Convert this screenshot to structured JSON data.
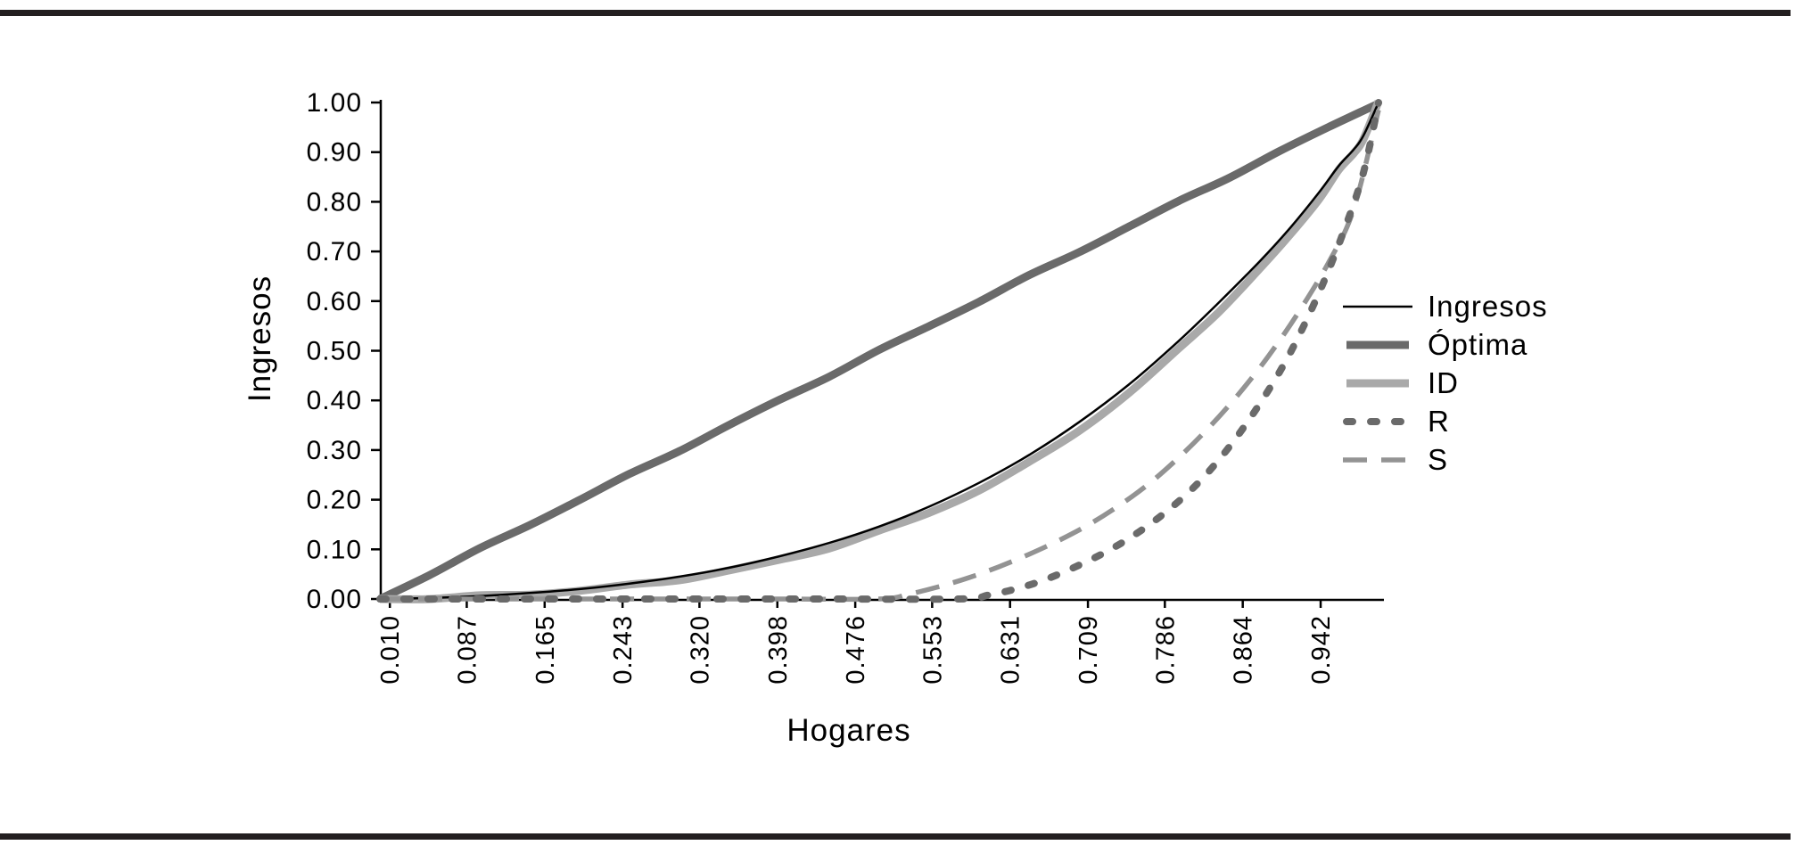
{
  "chart_data": {
    "type": "line",
    "title": "",
    "xlabel": "Hogares",
    "ylabel": "Ingresos",
    "xlim": [
      0,
      1
    ],
    "ylim": [
      0,
      1
    ],
    "grid": false,
    "legend_position": "right",
    "x_tick_labels": [
      "0.010",
      "0.087",
      "0.165",
      "0.243",
      "0.320",
      "0.398",
      "0.476",
      "0.553",
      "0.631",
      "0.709",
      "0.786",
      "0.864",
      "0.942"
    ],
    "x_tick_values": [
      0.01,
      0.087,
      0.165,
      0.243,
      0.32,
      0.398,
      0.476,
      0.553,
      0.631,
      0.709,
      0.786,
      0.864,
      0.942
    ],
    "y_tick_labels": [
      "0.00",
      "0.10",
      "0.20",
      "0.30",
      "0.40",
      "0.50",
      "0.60",
      "0.70",
      "0.80",
      "0.90",
      "1.00"
    ],
    "y_tick_values": [
      0,
      0.1,
      0.2,
      0.3,
      0.4,
      0.5,
      0.6,
      0.7,
      0.8,
      0.9,
      1.0
    ],
    "series": [
      {
        "name": "Ingresos",
        "color": "#000000",
        "width": 2.5,
        "dash": "solid",
        "points": [
          [
            0,
            0
          ],
          [
            0.05,
            0.002
          ],
          [
            0.1,
            0.006
          ],
          [
            0.15,
            0.012
          ],
          [
            0.2,
            0.02
          ],
          [
            0.25,
            0.031
          ],
          [
            0.3,
            0.045
          ],
          [
            0.35,
            0.063
          ],
          [
            0.4,
            0.086
          ],
          [
            0.45,
            0.113
          ],
          [
            0.5,
            0.146
          ],
          [
            0.55,
            0.186
          ],
          [
            0.6,
            0.234
          ],
          [
            0.65,
            0.29
          ],
          [
            0.7,
            0.356
          ],
          [
            0.75,
            0.432
          ],
          [
            0.8,
            0.52
          ],
          [
            0.84,
            0.597
          ],
          [
            0.88,
            0.678
          ],
          [
            0.91,
            0.744
          ],
          [
            0.94,
            0.818
          ],
          [
            0.96,
            0.872
          ],
          [
            0.975,
            0.905
          ],
          [
            0.985,
            0.934
          ],
          [
            1,
            1
          ]
        ]
      },
      {
        "name": "Óptima",
        "color": "#6a6a6a",
        "width": 9,
        "dash": "solid",
        "points": [
          [
            0,
            0
          ],
          [
            0.05,
            0.05
          ],
          [
            0.1,
            0.1
          ],
          [
            0.15,
            0.15
          ],
          [
            0.2,
            0.2
          ],
          [
            0.25,
            0.25
          ],
          [
            0.3,
            0.3
          ],
          [
            0.35,
            0.35
          ],
          [
            0.4,
            0.4
          ],
          [
            0.45,
            0.45
          ],
          [
            0.5,
            0.5
          ],
          [
            0.55,
            0.55
          ],
          [
            0.6,
            0.6
          ],
          [
            0.65,
            0.65
          ],
          [
            0.7,
            0.7
          ],
          [
            0.75,
            0.75
          ],
          [
            0.8,
            0.8
          ],
          [
            0.85,
            0.85
          ],
          [
            0.9,
            0.9
          ],
          [
            0.95,
            0.95
          ],
          [
            1,
            1
          ]
        ]
      },
      {
        "name": "ID",
        "color": "#a9a9a9",
        "width": 9,
        "dash": "solid",
        "points": [
          [
            0,
            0
          ],
          [
            0.05,
            0.0015
          ],
          [
            0.1,
            0.005
          ],
          [
            0.15,
            0.01
          ],
          [
            0.2,
            0.017
          ],
          [
            0.25,
            0.027
          ],
          [
            0.3,
            0.04
          ],
          [
            0.35,
            0.057
          ],
          [
            0.4,
            0.078
          ],
          [
            0.45,
            0.104
          ],
          [
            0.5,
            0.136
          ],
          [
            0.55,
            0.174
          ],
          [
            0.6,
            0.22
          ],
          [
            0.65,
            0.274
          ],
          [
            0.7,
            0.34
          ],
          [
            0.75,
            0.415
          ],
          [
            0.8,
            0.503
          ],
          [
            0.84,
            0.58
          ],
          [
            0.88,
            0.662
          ],
          [
            0.91,
            0.73
          ],
          [
            0.94,
            0.806
          ],
          [
            0.96,
            0.862
          ],
          [
            0.975,
            0.898
          ],
          [
            0.985,
            0.928
          ],
          [
            1,
            1
          ]
        ]
      },
      {
        "name": "R",
        "color": "#6a6a6a",
        "width": 8,
        "dash": "dotted",
        "points": [
          [
            0,
            0
          ],
          [
            0.15,
            0
          ],
          [
            0.3,
            0
          ],
          [
            0.45,
            0
          ],
          [
            0.58,
            0
          ],
          [
            0.61,
            0.008
          ],
          [
            0.64,
            0.022
          ],
          [
            0.67,
            0.042
          ],
          [
            0.7,
            0.068
          ],
          [
            0.73,
            0.098
          ],
          [
            0.76,
            0.135
          ],
          [
            0.79,
            0.18
          ],
          [
            0.82,
            0.235
          ],
          [
            0.85,
            0.305
          ],
          [
            0.88,
            0.39
          ],
          [
            0.91,
            0.49
          ],
          [
            0.94,
            0.615
          ],
          [
            0.965,
            0.74
          ],
          [
            0.985,
            0.86
          ],
          [
            1,
            1
          ]
        ]
      },
      {
        "name": "S",
        "color": "#939393",
        "width": 5.5,
        "dash": "dashed",
        "points": [
          [
            0,
            0
          ],
          [
            0.15,
            0
          ],
          [
            0.3,
            0
          ],
          [
            0.4,
            0
          ],
          [
            0.5,
            0
          ],
          [
            0.53,
            0.01
          ],
          [
            0.56,
            0.025
          ],
          [
            0.59,
            0.043
          ],
          [
            0.62,
            0.065
          ],
          [
            0.65,
            0.09
          ],
          [
            0.68,
            0.118
          ],
          [
            0.71,
            0.15
          ],
          [
            0.74,
            0.188
          ],
          [
            0.77,
            0.232
          ],
          [
            0.8,
            0.285
          ],
          [
            0.83,
            0.345
          ],
          [
            0.86,
            0.413
          ],
          [
            0.89,
            0.49
          ],
          [
            0.92,
            0.578
          ],
          [
            0.95,
            0.678
          ],
          [
            0.975,
            0.785
          ],
          [
            1,
            0.985
          ]
        ]
      }
    ]
  },
  "colors": {
    "background": "#ffffff",
    "rule": "#231f20",
    "axis": "#000000",
    "text": "#000000"
  }
}
